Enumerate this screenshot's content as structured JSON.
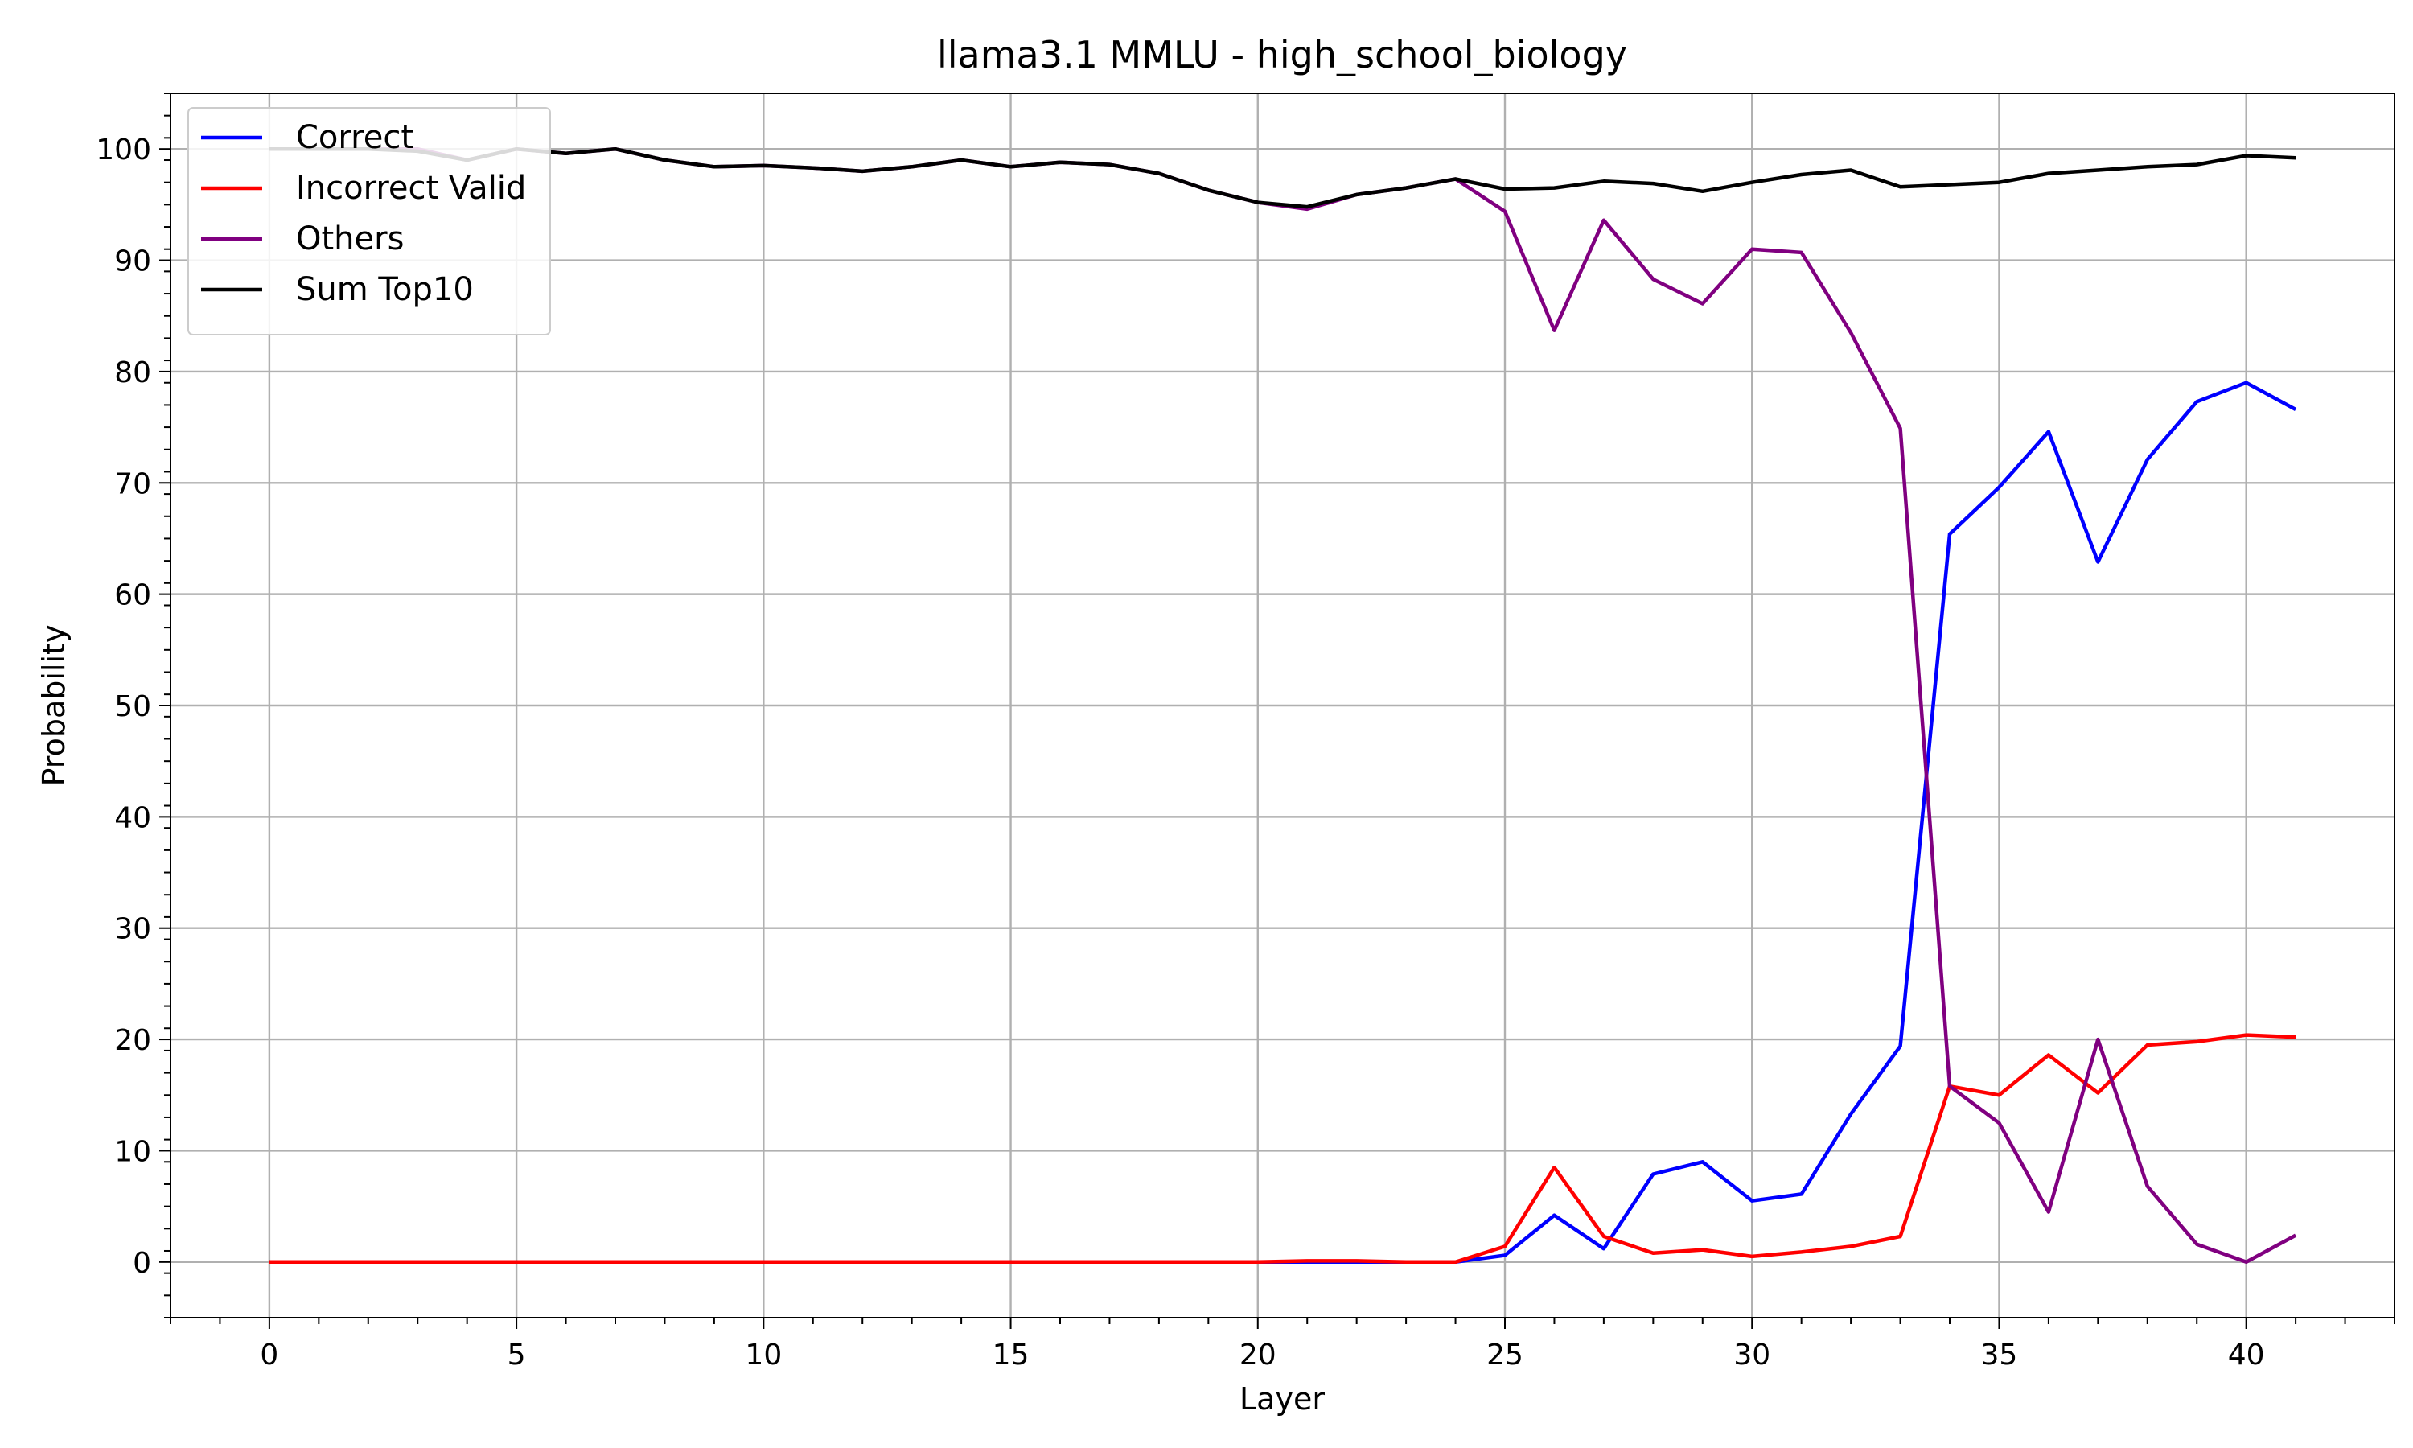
{
  "chart_data": {
    "type": "line",
    "title": "llama3.1 MMLU - high_school_biology",
    "xlabel": "Layer",
    "ylabel": "Probability",
    "xlim": [
      -2,
      43
    ],
    "ylim": [
      -5,
      105
    ],
    "xticks": [
      0,
      5,
      10,
      15,
      20,
      25,
      30,
      35,
      40
    ],
    "yticks": [
      0,
      10,
      20,
      30,
      40,
      50,
      60,
      70,
      80,
      90,
      100
    ],
    "grid": true,
    "legend_position": "top-left",
    "x": [
      0,
      1,
      2,
      3,
      4,
      5,
      6,
      7,
      8,
      9,
      10,
      11,
      12,
      13,
      14,
      15,
      16,
      17,
      18,
      19,
      20,
      21,
      22,
      23,
      24,
      25,
      26,
      27,
      28,
      29,
      30,
      31,
      32,
      33,
      34,
      35,
      36,
      37,
      38,
      39,
      40,
      41
    ],
    "series": [
      {
        "name": "Correct",
        "color": "#0000ff",
        "values": [
          0,
          0,
          0,
          0,
          0,
          0,
          0,
          0,
          0,
          0,
          0,
          0,
          0,
          0,
          0,
          0,
          0,
          0,
          0,
          0,
          0,
          0,
          0,
          0,
          0,
          0.6,
          4.2,
          1.2,
          7.9,
          9.0,
          5.5,
          6.1,
          13.3,
          19.4,
          65.4,
          69.6,
          74.6,
          62.9,
          72.1,
          77.3,
          79.0,
          76.6
        ]
      },
      {
        "name": "Incorrect Valid",
        "color": "#ff0000",
        "values": [
          0,
          0,
          0,
          0,
          0,
          0,
          0,
          0,
          0,
          0,
          0,
          0,
          0,
          0,
          0,
          0,
          0,
          0,
          0,
          0,
          0,
          0.1,
          0.1,
          0,
          0,
          1.4,
          8.5,
          2.3,
          0.8,
          1.1,
          0.5,
          0.9,
          1.4,
          2.3,
          15.8,
          15.0,
          18.6,
          15.2,
          19.5,
          19.8,
          20.4,
          20.2
        ]
      },
      {
        "name": "Others",
        "color": "#800080",
        "values": [
          100,
          100,
          100,
          100,
          99,
          100,
          99.6,
          100,
          99,
          98.4,
          98.5,
          98.3,
          98,
          98.4,
          99,
          98.4,
          98.8,
          98.6,
          97.8,
          96.3,
          95.2,
          94.6,
          95.9,
          96.5,
          97.3,
          94.4,
          83.7,
          93.6,
          88.3,
          86.1,
          91.0,
          90.7,
          83.5,
          74.9,
          15.8,
          12.5,
          4.5,
          20.0,
          6.8,
          1.6,
          0.0,
          2.4
        ]
      },
      {
        "name": "Sum Top10",
        "color": "#000000",
        "values": [
          100,
          100,
          100,
          99.8,
          99.0,
          100,
          99.6,
          100,
          99.0,
          98.4,
          98.5,
          98.3,
          98.0,
          98.4,
          99.0,
          98.4,
          98.8,
          98.6,
          97.8,
          96.3,
          95.2,
          94.8,
          95.9,
          96.5,
          97.3,
          96.4,
          96.5,
          97.1,
          96.9,
          96.2,
          97.0,
          97.7,
          98.1,
          96.6,
          96.8,
          97.0,
          97.8,
          98.1,
          98.4,
          98.6,
          99.4,
          99.2
        ]
      }
    ]
  }
}
